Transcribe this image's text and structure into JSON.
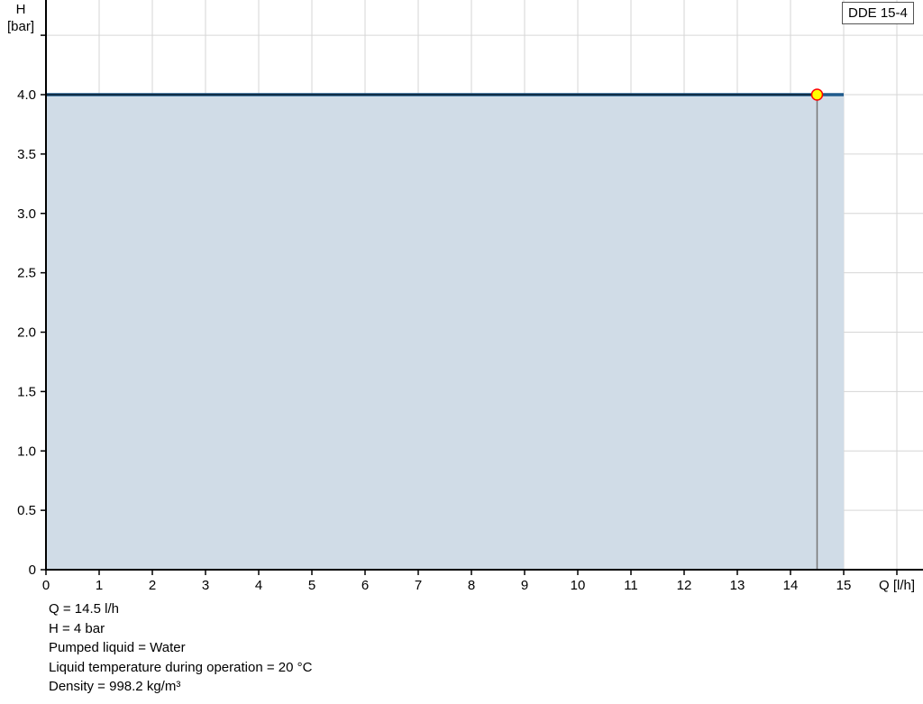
{
  "chart_data": {
    "type": "area",
    "title": "",
    "xlabel": "Q [l/h]",
    "ylabel_top": "H",
    "ylabel_unit": "[bar]",
    "xlim": [
      0,
      16
    ],
    "ylim": [
      0,
      4.5
    ],
    "grid": true,
    "x_ticks": [
      "0",
      "1",
      "2",
      "3",
      "4",
      "5",
      "6",
      "7",
      "8",
      "9",
      "10",
      "11",
      "12",
      "13",
      "14",
      "15"
    ],
    "y_ticks": [
      "0",
      "0.5",
      "1.0",
      "1.5",
      "2.0",
      "2.5",
      "3.0",
      "3.5",
      "4.0"
    ],
    "series": [
      {
        "name": "DDE 15-4",
        "x": [
          0,
          15
        ],
        "y": [
          4.0,
          4.0
        ],
        "color": "#1f5a8c",
        "fill": "#d0dce7"
      }
    ],
    "duty_point": {
      "x": 14.5,
      "y": 4.0,
      "color": "#ffff00",
      "border": "#ff0000"
    },
    "legend": {
      "label": "DDE 15-4",
      "placement": "top-right"
    }
  },
  "info": [
    "Q = 14.5 l/h",
    "H = 4 bar",
    "Pumped liquid = Water",
    "Liquid temperature during operation = 20 °C",
    "Density = 998.2 kg/m³"
  ]
}
